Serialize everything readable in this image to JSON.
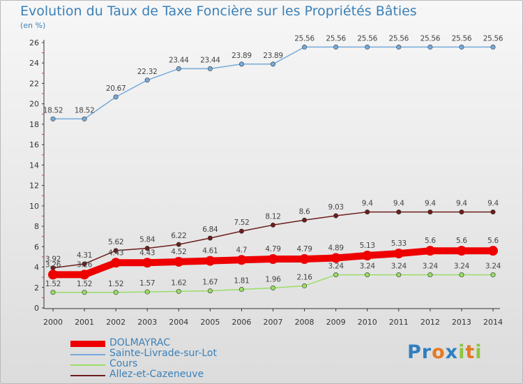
{
  "title": "Evolution du Taux de Taxe Foncière sur les Propriétés Bâties",
  "unit_label": "(en %)",
  "logo": {
    "text": "Proxiti"
  },
  "chart_data": {
    "type": "line",
    "x": [
      "2000",
      "2001",
      "2002",
      "2003",
      "2004",
      "2005",
      "2006",
      "2007",
      "2008",
      "2009",
      "2010",
      "2011",
      "2012",
      "2013",
      "2014"
    ],
    "ylim": [
      0,
      26
    ],
    "yticks": [
      "0",
      "2",
      "4",
      "6",
      "8",
      "10",
      "12",
      "14",
      "16",
      "18",
      "20",
      "22",
      "24",
      "26"
    ],
    "grid": false,
    "legend_position": "bottom-left",
    "series": [
      {
        "name": "DOLMAYRAC",
        "color": "#ee0000",
        "values": [
          3.26,
          3.26,
          4.43,
          4.43,
          4.52,
          4.61,
          4.7,
          4.79,
          4.79,
          4.89,
          5.13,
          5.33,
          5.6,
          5.6,
          5.6
        ],
        "labels": [
          "3.26",
          "3.26",
          "4.43",
          "4.43",
          "4.52",
          "4.61",
          "4.7",
          "4.79",
          "4.79",
          "4.89",
          "5.13",
          "5.33",
          "5.6",
          "5.6",
          "5.6"
        ]
      },
      {
        "name": "Sainte-Livrade-sur-Lot",
        "color": "#76aadb",
        "values": [
          18.52,
          18.52,
          20.67,
          22.32,
          23.44,
          23.44,
          23.89,
          23.89,
          25.56,
          25.56,
          25.56,
          25.56,
          25.56,
          25.56,
          25.56
        ],
        "labels": [
          "18.52",
          "18.52",
          "20.67",
          "22.32",
          "23.44",
          "23.44",
          "23.89",
          "23.89",
          "25.56",
          "25.56",
          "25.56",
          "25.56",
          "25.56",
          "25.56",
          "25.56"
        ]
      },
      {
        "name": "Cours",
        "color": "#99dd66",
        "values": [
          1.52,
          1.52,
          1.52,
          1.57,
          1.62,
          1.67,
          1.81,
          1.96,
          2.16,
          3.24,
          3.24,
          3.24,
          3.24,
          3.24,
          3.24
        ],
        "labels": [
          "1.52",
          "1.52",
          "1.52",
          "1.57",
          "1.62",
          "1.67",
          "1.81",
          "1.96",
          "2.16",
          "3.24",
          "3.24",
          "3.24",
          "3.24",
          "3.24",
          "3.24"
        ]
      },
      {
        "name": "Allez-et-Cazeneuve",
        "color": "#6d1d1d",
        "values": [
          3.92,
          4.31,
          5.62,
          5.84,
          6.22,
          6.84,
          7.52,
          8.12,
          8.6,
          9.03,
          9.4,
          9.4,
          9.4,
          9.4,
          9.4
        ],
        "labels": [
          "3.92",
          "4.31",
          "5.62",
          "5.84",
          "6.22",
          "6.84",
          "7.52",
          "8.12",
          "8.6",
          "9.03",
          "9.4",
          "9.4",
          "9.4",
          "9.4",
          "9.4"
        ]
      }
    ]
  }
}
